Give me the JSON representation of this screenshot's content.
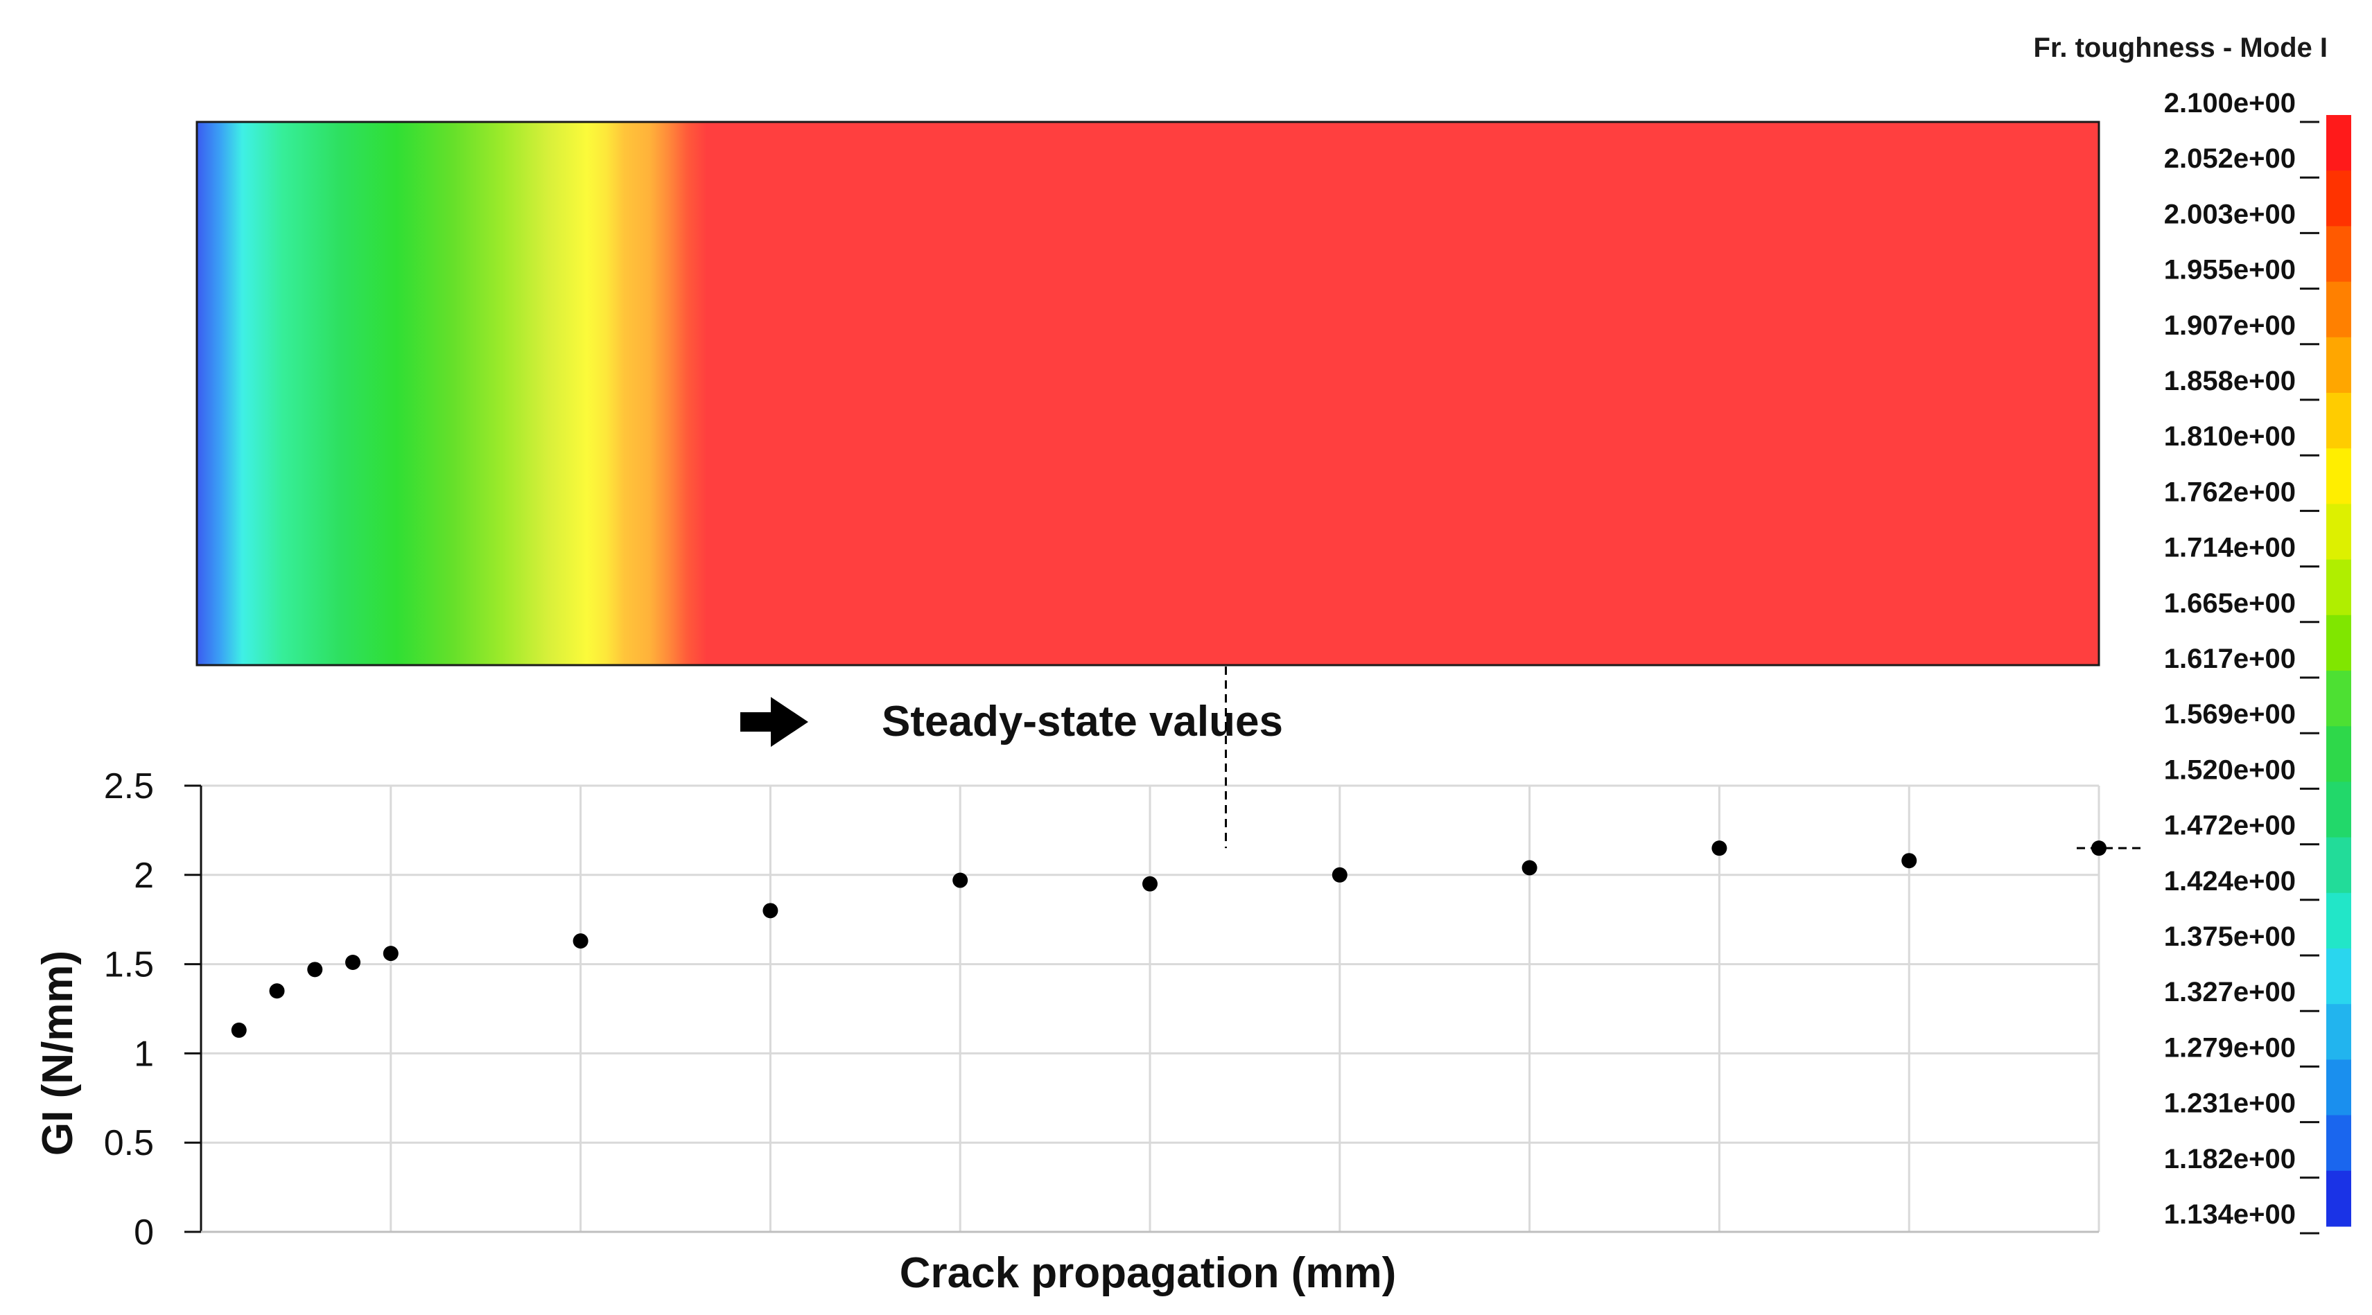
{
  "colorbar": {
    "title": "Fr. toughness - Mode I",
    "labels": [
      "2.100e+00",
      "2.052e+00",
      "2.003e+00",
      "1.955e+00",
      "1.907e+00",
      "1.858e+00",
      "1.810e+00",
      "1.762e+00",
      "1.714e+00",
      "1.665e+00",
      "1.617e+00",
      "1.569e+00",
      "1.520e+00",
      "1.472e+00",
      "1.424e+00",
      "1.375e+00",
      "1.327e+00",
      "1.279e+00",
      "1.231e+00",
      "1.182e+00",
      "1.134e+00"
    ],
    "colors_top_to_bottom": [
      "#ff1a1a",
      "#ff3300",
      "#ff5a00",
      "#ff8000",
      "#ffa600",
      "#ffcc00",
      "#ffee00",
      "#ddf000",
      "#b0ee00",
      "#80e600",
      "#4de033",
      "#2ed84a",
      "#22d86a",
      "#22dc99",
      "#22e6c8",
      "#2ad6ee",
      "#22b4ee",
      "#1a8fee",
      "#1a66ee",
      "#1a33e6"
    ]
  },
  "contour": {
    "gradient_stops": [
      {
        "offset": 0.0,
        "color": "#3a5cf0"
      },
      {
        "offset": 0.012,
        "color": "#3aa0f5"
      },
      {
        "offset": 0.024,
        "color": "#3ff0e6"
      },
      {
        "offset": 0.045,
        "color": "#36ee99"
      },
      {
        "offset": 0.075,
        "color": "#2ee060"
      },
      {
        "offset": 0.105,
        "color": "#30df34"
      },
      {
        "offset": 0.135,
        "color": "#66e02a"
      },
      {
        "offset": 0.16,
        "color": "#9cea2a"
      },
      {
        "offset": 0.185,
        "color": "#d8f03a"
      },
      {
        "offset": 0.205,
        "color": "#fbfa3a"
      },
      {
        "offset": 0.215,
        "color": "#fde83a"
      },
      {
        "offset": 0.225,
        "color": "#ffc43a"
      },
      {
        "offset": 0.238,
        "color": "#ffb23a"
      },
      {
        "offset": 0.248,
        "color": "#ff8a3a"
      },
      {
        "offset": 0.258,
        "color": "#ff5a3a"
      },
      {
        "offset": 0.268,
        "color": "#ff3f3f"
      },
      {
        "offset": 1.0,
        "color": "#ff3f3f"
      }
    ]
  },
  "annotation": {
    "label": "Steady-state values",
    "arrow_icon": "right-arrow-icon"
  },
  "chart_data": {
    "type": "scatter",
    "xlabel": "Crack propagation  (mm)",
    "ylabel": "GI (N/mm)",
    "ylim": [
      0,
      2.5
    ],
    "yticks": [
      "0",
      "0.5",
      "1",
      "1.5",
      "2",
      "2.5"
    ],
    "x_gridlines": 10,
    "grid": true,
    "series": [
      {
        "points": [
          {
            "x": 0.1,
            "y": 1.13
          },
          {
            "x": 0.2,
            "y": 1.35
          },
          {
            "x": 0.3,
            "y": 1.47
          },
          {
            "x": 0.4,
            "y": 1.51
          },
          {
            "x": 0.5,
            "y": 1.56
          },
          {
            "x": 1.0,
            "y": 1.63
          },
          {
            "x": 1.5,
            "y": 1.8
          },
          {
            "x": 2.0,
            "y": 1.97
          },
          {
            "x": 2.5,
            "y": 1.95
          },
          {
            "x": 3.0,
            "y": 2.0
          },
          {
            "x": 3.5,
            "y": 2.04
          },
          {
            "x": 4.0,
            "y": 2.15
          },
          {
            "x": 4.5,
            "y": 2.08
          },
          {
            "x": 5.0,
            "y": 2.15
          }
        ]
      }
    ],
    "steady_state_value": 2.15,
    "steady_state_start_x": 2.7
  }
}
